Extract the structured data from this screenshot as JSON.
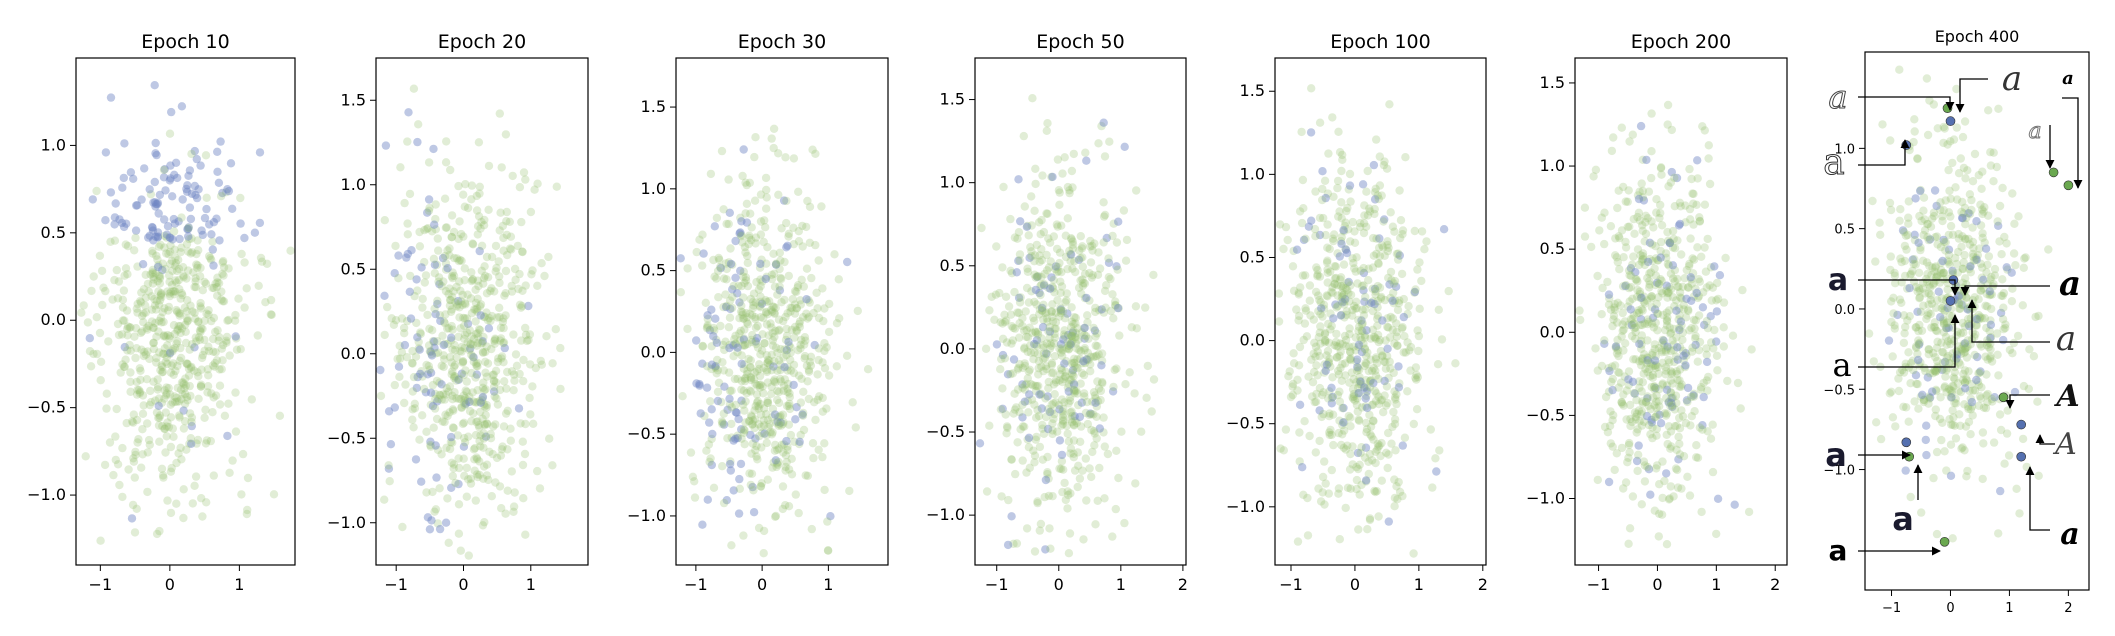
{
  "colors": {
    "green": "#92c06b",
    "blue": "#6f86c4",
    "axis": "#000000"
  },
  "chart_data": [
    {
      "type": "scatter",
      "title": "Epoch 10",
      "xlim": [
        -1.35,
        1.8
      ],
      "ylim": [
        -1.4,
        1.5
      ],
      "xticks": [
        -1,
        0,
        1
      ],
      "yticks": [
        -1.0,
        -0.5,
        0.0,
        0.5,
        1.0
      ],
      "xtick_labels": [
        "−1",
        "0",
        "1"
      ],
      "ytick_labels": [
        "−1.0",
        "−0.5",
        "0.0",
        "0.5",
        "1.0"
      ],
      "grid": false,
      "legend": "none",
      "blue_region": "top"
    },
    {
      "type": "scatter",
      "title": "Epoch 20",
      "xlim": [
        -1.3,
        1.85
      ],
      "ylim": [
        -1.25,
        1.75
      ],
      "xticks": [
        -1,
        0,
        1
      ],
      "yticks": [
        -1.0,
        -0.5,
        0.0,
        0.5,
        1.0,
        1.5
      ],
      "xtick_labels": [
        "−1",
        "0",
        "1"
      ],
      "ytick_labels": [
        "−1.0",
        "−0.5",
        "0.0",
        "0.5",
        "1.0",
        "1.5"
      ],
      "grid": false,
      "legend": "none",
      "blue_region": "left"
    },
    {
      "type": "scatter",
      "title": "Epoch 30",
      "xlim": [
        -1.3,
        1.9
      ],
      "ylim": [
        -1.3,
        1.8
      ],
      "xticks": [
        -1,
        0,
        1
      ],
      "yticks": [
        -1.0,
        -0.5,
        0.0,
        0.5,
        1.0,
        1.5
      ],
      "xtick_labels": [
        "−1",
        "0",
        "1"
      ],
      "ytick_labels": [
        "−1.0",
        "−0.5",
        "0.0",
        "0.5",
        "1.0",
        "1.5"
      ],
      "grid": false,
      "legend": "none",
      "blue_region": "left"
    },
    {
      "type": "scatter",
      "title": "Epoch 50",
      "xlim": [
        -1.35,
        2.05
      ],
      "ylim": [
        -1.3,
        1.75
      ],
      "xticks": [
        -1,
        0,
        1,
        2
      ],
      "yticks": [
        -1.0,
        -0.5,
        0.0,
        0.5,
        1.0,
        1.5
      ],
      "xtick_labels": [
        "−1",
        "0",
        "1",
        "2"
      ],
      "ytick_labels": [
        "−1.0",
        "−0.5",
        "0.0",
        "0.5",
        "1.0",
        "1.5"
      ],
      "grid": false,
      "legend": "none",
      "blue_region": "spread"
    },
    {
      "type": "scatter",
      "title": "Epoch 100",
      "xlim": [
        -1.25,
        2.05
      ],
      "ylim": [
        -1.35,
        1.7
      ],
      "xticks": [
        -1,
        0,
        1,
        2
      ],
      "yticks": [
        -1.0,
        -0.5,
        0.0,
        0.5,
        1.0,
        1.5
      ],
      "xtick_labels": [
        "−1",
        "0",
        "1",
        "2"
      ],
      "ytick_labels": [
        "−1.0",
        "−0.5",
        "0.0",
        "0.5",
        "1.0",
        "1.5"
      ],
      "grid": false,
      "legend": "none",
      "blue_region": "spread"
    },
    {
      "type": "scatter",
      "title": "Epoch 200",
      "xlim": [
        -1.4,
        2.2
      ],
      "ylim": [
        -1.4,
        1.65
      ],
      "xticks": [
        -1,
        0,
        1,
        2
      ],
      "yticks": [
        -1.0,
        -0.5,
        0.0,
        0.5,
        1.0,
        1.5
      ],
      "xtick_labels": [
        "−1",
        "0",
        "1",
        "2"
      ],
      "ytick_labels": [
        "−1.0",
        "−0.5",
        "0.0",
        "0.5",
        "1.0",
        "1.5"
      ],
      "grid": false,
      "legend": "none",
      "blue_region": "spread"
    },
    {
      "type": "scatter",
      "title": "Epoch 400",
      "xlim": [
        -1.45,
        2.35
      ],
      "ylim": [
        -1.75,
        1.6
      ],
      "xticks": [
        -1,
        0,
        1,
        2
      ],
      "yticks": [
        -1.0,
        -0.5,
        0.0,
        0.5,
        1.0
      ],
      "xtick_labels": [
        "−1",
        "0",
        "1",
        "2"
      ],
      "ytick_labels": [
        "−1.0",
        "−0.5",
        "0.0",
        "0.5",
        "1.0"
      ],
      "grid": false,
      "legend": "none",
      "blue_region": "spread",
      "highlight_points": [
        {
          "x": -0.05,
          "y": 1.25,
          "color": "green"
        },
        {
          "x": 0.0,
          "y": 1.17,
          "color": "blue"
        },
        {
          "x": -0.75,
          "y": 1.02,
          "color": "blue"
        },
        {
          "x": 1.75,
          "y": 0.85,
          "color": "green"
        },
        {
          "x": 2.0,
          "y": 0.77,
          "color": "green"
        },
        {
          "x": 0.05,
          "y": 0.18,
          "color": "blue"
        },
        {
          "x": 0.0,
          "y": 0.05,
          "color": "blue"
        },
        {
          "x": 0.9,
          "y": -0.55,
          "color": "green"
        },
        {
          "x": 1.2,
          "y": -0.72,
          "color": "blue"
        },
        {
          "x": -0.75,
          "y": -0.83,
          "color": "blue"
        },
        {
          "x": -0.7,
          "y": -0.92,
          "color": "green"
        },
        {
          "x": 1.2,
          "y": -0.92,
          "color": "blue"
        },
        {
          "x": -0.1,
          "y": -1.45,
          "color": "green"
        }
      ]
    }
  ],
  "glyph_labels": [
    {
      "name": "glyph-a-1",
      "char": "a"
    },
    {
      "name": "glyph-a-2",
      "char": "a"
    },
    {
      "name": "glyph-a-3",
      "char": "a"
    },
    {
      "name": "glyph-a-4",
      "char": "a"
    },
    {
      "name": "glyph-a-5",
      "char": "a"
    },
    {
      "name": "glyph-a-6",
      "char": "a"
    },
    {
      "name": "glyph-a-7",
      "char": "a"
    },
    {
      "name": "glyph-a-8",
      "char": "a"
    },
    {
      "name": "glyph-a-9",
      "char": "a"
    },
    {
      "name": "glyph-a-10",
      "char": "a"
    },
    {
      "name": "glyph-a-11",
      "char": "A"
    },
    {
      "name": "glyph-a-12",
      "char": "A"
    },
    {
      "name": "glyph-a-13",
      "char": "a"
    },
    {
      "name": "glyph-a-14",
      "char": "a"
    },
    {
      "name": "glyph-a-15",
      "char": "a"
    },
    {
      "name": "glyph-a-16",
      "char": "a"
    }
  ]
}
